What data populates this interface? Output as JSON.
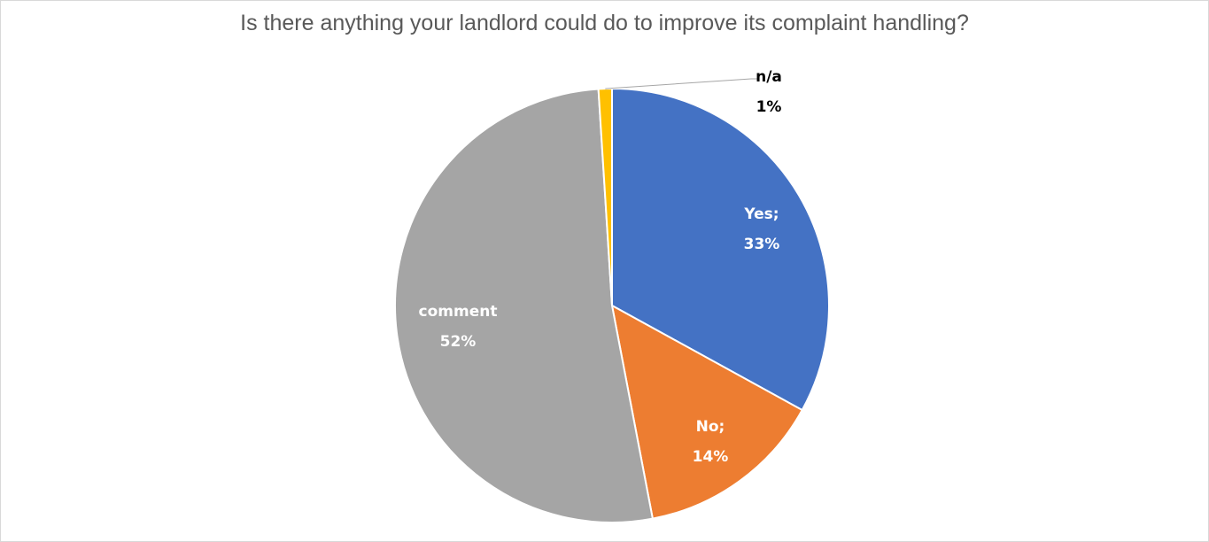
{
  "chart_data": {
    "type": "pie",
    "title": "Is there anything your landlord could do to improve its complaint handling?",
    "slices": [
      {
        "name": "Yes",
        "value": 33,
        "color": "#4472C4",
        "label_line1": "Yes;",
        "label_line2": "33%"
      },
      {
        "name": "No",
        "value": 14,
        "color": "#ED7D31",
        "label_line1": "No;",
        "label_line2": "14%"
      },
      {
        "name": "comment",
        "value": 52,
        "color": "#A5A5A5",
        "label_line1": "comment",
        "label_line2": "52%"
      },
      {
        "name": "n/a",
        "value": 1,
        "color": "#FFC000",
        "label_line1": "n/a",
        "label_line2": "1%"
      }
    ],
    "start_angle": "12 o'clock",
    "direction": "clockwise",
    "legend": "none"
  }
}
